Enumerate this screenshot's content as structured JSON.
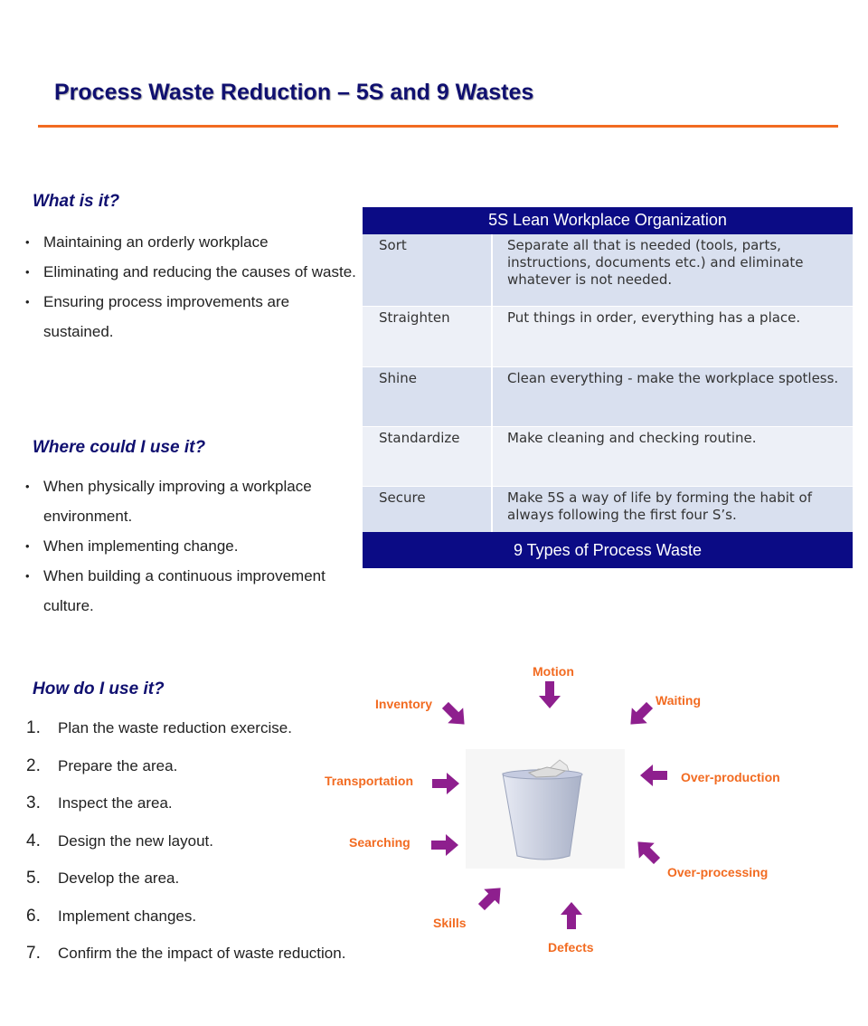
{
  "title": "Process Waste Reduction – 5S and 9 Wastes",
  "what": {
    "heading": "What is it?",
    "items": [
      "Maintaining an orderly workplace",
      "Eliminating and reducing the causes of waste.",
      "Ensuring process improvements are sustained."
    ]
  },
  "where": {
    "heading": "Where could I use it?",
    "items": [
      "When physically improving a workplace environment.",
      "When implementing change.",
      "When building a continuous improvement culture."
    ]
  },
  "how": {
    "heading": "How do I use it?",
    "steps": [
      {
        "n": "1.",
        "t": "Plan the waste reduction exercise."
      },
      {
        "n": "2.",
        "t": "Prepare the area."
      },
      {
        "n": "3.",
        "t": "Inspect the area."
      },
      {
        "n": "4.",
        "t": "Design the new layout."
      },
      {
        "n": "5.",
        "t": "Develop the area."
      },
      {
        "n": "6.",
        "t": "Implement changes."
      },
      {
        "n": "7.",
        "t": "Confirm the the impact of waste reduction."
      }
    ]
  },
  "table": {
    "header": "5S Lean Workplace Organization",
    "rows": [
      {
        "k": "Sort",
        "v": "Separate all that is needed (tools, parts, instructions, documents etc.) and eliminate whatever is not needed."
      },
      {
        "k": "Straighten",
        "v": "Put things in order, everything has a place."
      },
      {
        "k": "Shine",
        "v": "Clean everything - make the workplace spotless."
      },
      {
        "k": "Standardize",
        "v": "Make cleaning and checking routine."
      },
      {
        "k": "Secure",
        "v": "Make 5S a way of life by forming the habit of always following the first four S’s."
      }
    ],
    "footer": "9 Types of Process Waste"
  },
  "wastes": [
    "Motion",
    "Inventory",
    "Waiting",
    "Transportation",
    "Searching",
    "Over-production",
    "Over-processing",
    "Skills",
    "Defects"
  ],
  "colors": {
    "navy": "#0b0b85",
    "orange": "#f26b21",
    "arrow": "#8e1f8e"
  }
}
